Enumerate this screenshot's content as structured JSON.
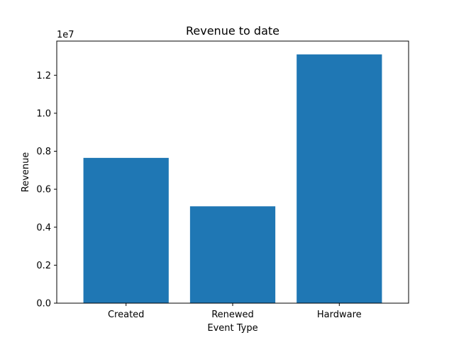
{
  "chart_data": {
    "type": "bar",
    "title": "Revenue to date",
    "xlabel": "Event Type",
    "ylabel": "Revenue",
    "categories": [
      "Created",
      "Renewed",
      "Hardware"
    ],
    "values": [
      7650000,
      5100000,
      13100000
    ],
    "ylim": [
      0,
      13800000
    ],
    "yticks": [
      0,
      2000000,
      4000000,
      6000000,
      8000000,
      10000000,
      12000000
    ],
    "ytick_labels": [
      "0.0",
      "0.2",
      "0.4",
      "0.6",
      "0.8",
      "1.0",
      "1.2"
    ],
    "y_offset_label": "1e7",
    "grid": false,
    "bar_color": "#1f77b4"
  }
}
